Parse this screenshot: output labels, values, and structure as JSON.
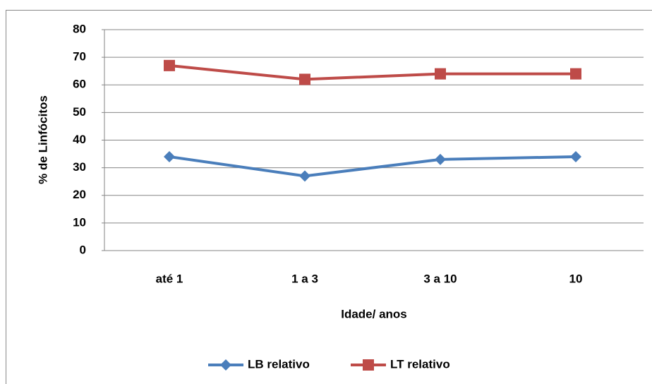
{
  "chart_data": {
    "type": "line",
    "y_label": "% de Linfócitos",
    "x_label": "Idade/ anos",
    "categories": [
      "até 1",
      "1 a 3",
      "3 a 10",
      "10"
    ],
    "series": [
      {
        "name": "LB relativo",
        "color": "#4a7ebb",
        "marker": "diamond",
        "values": [
          34,
          27,
          33,
          34
        ]
      },
      {
        "name": "LT relativo",
        "color": "#be4b48",
        "marker": "square",
        "values": [
          67,
          62,
          64,
          64
        ]
      }
    ],
    "ylim": [
      0,
      80
    ],
    "yticks": [
      0,
      10,
      20,
      30,
      40,
      50,
      60,
      70,
      80
    ],
    "grid": true,
    "legend": "bottom"
  }
}
